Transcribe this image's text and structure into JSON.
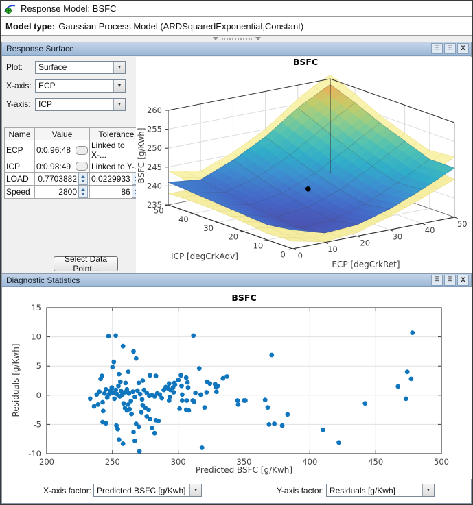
{
  "window": {
    "title": "Response Model: BSFC",
    "model_type_label": "Model type:",
    "model_type_value": "Gaussian Process Model (ARDSquaredExponential,Constant)"
  },
  "colors": {
    "panel_header": "#a9c2de",
    "scatter_point": "#0f75bc",
    "surface_low": "#4f46a0",
    "surface_mid": "#30adc9",
    "surface_high": "#eda64f",
    "confidence_surface": "#f8f2ad"
  },
  "response_surface_panel": {
    "title": "Response Surface",
    "buttons": {
      "dock": "⊟",
      "maximize": "⊞",
      "close": "X"
    },
    "controls": [
      {
        "label": "Plot:",
        "value": "Surface"
      },
      {
        "label": "X-axis:",
        "value": "ECP"
      },
      {
        "label": "Y-axis:",
        "value": "ICP"
      }
    ],
    "table": {
      "headers": [
        "Name",
        "Value",
        "Tolerance"
      ],
      "rows": [
        {
          "name": "ECP",
          "value": "0:0.96:48",
          "tolerance": "Linked to X-..."
        },
        {
          "name": "ICP",
          "value": "0:0.98:49",
          "tolerance": "Linked to Y-..."
        },
        {
          "name": "LOAD",
          "value": "0.7703882",
          "tolerance": "0.0229933"
        },
        {
          "name": "Speed",
          "value": "2800",
          "tolerance": "86"
        }
      ]
    },
    "select_data_point_button": "Select Data Point..."
  },
  "diagnostic_panel": {
    "title": "Diagnostic Statistics",
    "buttons": {
      "dock": "⊟",
      "maximize": "⊞",
      "close": "X"
    },
    "x_factor_label": "X-axis factor:",
    "x_factor_value": "Predicted BSFC [g/Kwh]",
    "y_factor_label": "Y-axis factor:",
    "y_factor_value": "Residuals [g/Kwh]"
  },
  "chart_data": [
    {
      "type": "surface",
      "title": "BSFC",
      "xlabel": "ECP [degCrkRet]",
      "ylabel": "ICP [degCrkAdv]",
      "zlabel": "BSFC [g/Kwh]",
      "xlim": [
        0,
        50
      ],
      "ylim": [
        0,
        50
      ],
      "zlim": [
        235,
        260
      ],
      "xticks": [
        0,
        10,
        20,
        30,
        40,
        50
      ],
      "yticks": [
        0,
        10,
        20,
        30,
        40,
        50
      ],
      "zticks": [
        235,
        240,
        245,
        250,
        255,
        260
      ],
      "ecp_grid": [
        0,
        10,
        20,
        30,
        40,
        50
      ],
      "icp_grid": [
        0,
        10,
        20,
        30,
        40,
        50
      ],
      "bsfc_values": [
        [
          240.0,
          237.5,
          238.0,
          240.5,
          244.0,
          248.0
        ],
        [
          239.0,
          236.5,
          237.0,
          239.5,
          243.5,
          248.0
        ],
        [
          239.5,
          237.0,
          238.0,
          241.0,
          245.5,
          250.5
        ],
        [
          240.0,
          238.0,
          239.5,
          243.0,
          248.0,
          253.0
        ],
        [
          240.5,
          239.0,
          241.5,
          245.5,
          251.0,
          256.0
        ],
        [
          241.0,
          240.0,
          243.5,
          248.0,
          254.0,
          258.5
        ]
      ],
      "confidence_band": "upper and lower boundary surfaces, ~1-3 g/Kwh, widest at edges",
      "marker": {
        "ecp": 24,
        "icp": 25,
        "bsfc": 241
      }
    },
    {
      "type": "scatter",
      "title": "BSFC",
      "xlabel": "Predicted BSFC [g/Kwh]",
      "ylabel": "Residuals [g/Kwh]",
      "xlim": [
        200,
        500
      ],
      "ylim": [
        -10,
        15
      ],
      "xticks": [
        200,
        250,
        300,
        350,
        400,
        450,
        500
      ],
      "yticks": [
        -10,
        -5,
        0,
        5,
        10,
        15
      ],
      "grid": true,
      "marker_color": "#0f75bc",
      "points": [
        [
          247,
          10.1
        ],
        [
          252.5,
          10.2
        ],
        [
          311.5,
          10.2
        ],
        [
          478,
          10.7
        ],
        [
          258,
          8.4
        ],
        [
          266,
          7.5
        ],
        [
          268,
          6.3
        ],
        [
          371,
          6.9
        ],
        [
          251,
          5.7
        ],
        [
          250,
          4.8
        ],
        [
          316,
          4.6
        ],
        [
          474,
          4.0
        ],
        [
          262,
          4.0
        ],
        [
          242,
          3.3
        ],
        [
          241,
          2.8
        ],
        [
          255,
          3.6
        ],
        [
          256,
          2.3
        ],
        [
          260,
          2.1
        ],
        [
          270,
          2.1
        ],
        [
          273,
          2.5
        ],
        [
          278.5,
          3.4
        ],
        [
          283,
          3.3
        ],
        [
          297,
          2.1
        ],
        [
          300,
          2.6
        ],
        [
          302,
          3.4
        ],
        [
          306,
          3.0
        ],
        [
          307,
          2.2
        ],
        [
          322,
          2.3
        ],
        [
          324,
          2.0
        ],
        [
          328,
          1.9
        ],
        [
          334,
          2.9
        ],
        [
          337,
          3.2
        ],
        [
          330,
          1.6
        ],
        [
          328.5,
          1.4
        ],
        [
          293,
          2.0
        ],
        [
          297.5,
          1.8
        ],
        [
          302.5,
          1.6
        ],
        [
          296,
          1.3
        ],
        [
          307.5,
          1.3
        ],
        [
          477,
          2.8
        ],
        [
          467,
          1.5
        ],
        [
          233,
          -0.6
        ],
        [
          238,
          0.1
        ],
        [
          240,
          0.6
        ],
        [
          242.5,
          -1.2
        ],
        [
          244,
          0.3
        ],
        [
          245,
          1.0
        ],
        [
          246,
          -0.4
        ],
        [
          247.5,
          0.2
        ],
        [
          248.5,
          0.8
        ],
        [
          249.5,
          1.3
        ],
        [
          250.5,
          0.4
        ],
        [
          251.5,
          -0.6
        ],
        [
          252.5,
          0.9
        ],
        [
          253.5,
          0.2
        ],
        [
          254.5,
          1.6
        ],
        [
          255.5,
          -0.2
        ],
        [
          256.5,
          0.7
        ],
        [
          257.5,
          0.1
        ],
        [
          258.5,
          -1.4
        ],
        [
          259.5,
          0.5
        ],
        [
          261,
          1.0
        ],
        [
          262.5,
          0.3
        ],
        [
          264,
          -1.0
        ],
        [
          265.5,
          0.6
        ],
        [
          267,
          -0.3
        ],
        [
          269,
          0.8
        ],
        [
          271,
          0.2
        ],
        [
          272.5,
          -0.7
        ],
        [
          274,
          0.9
        ],
        [
          276,
          0.4
        ],
        [
          278,
          -0.1
        ],
        [
          280,
          0.0
        ],
        [
          282,
          -0.2
        ],
        [
          284,
          0.3
        ],
        [
          286,
          0.1
        ],
        [
          287.5,
          -0.5
        ],
        [
          289,
          0.9
        ],
        [
          290.5,
          1.4
        ],
        [
          292,
          1.2
        ],
        [
          294,
          0.9
        ],
        [
          296.5,
          0.5
        ],
        [
          303,
          0.1
        ],
        [
          313,
          0.4
        ],
        [
          317,
          0.1
        ],
        [
          321.5,
          0.5
        ],
        [
          329,
          0.6
        ],
        [
          345,
          -0.9
        ],
        [
          350,
          -0.9
        ],
        [
          293.5,
          -0.3
        ],
        [
          236,
          -1.9
        ],
        [
          239,
          -1.6
        ],
        [
          243,
          -2.7
        ],
        [
          242.5,
          -4.6
        ],
        [
          245,
          -4.8
        ],
        [
          253,
          -5.2
        ],
        [
          254,
          -5.8
        ],
        [
          255,
          -7.6
        ],
        [
          258,
          -8.3
        ],
        [
          259.5,
          -2.2
        ],
        [
          261,
          -2.6
        ],
        [
          262,
          -1.6
        ],
        [
          263,
          -2.4
        ],
        [
          264.5,
          -3.2
        ],
        [
          266,
          -6.3
        ],
        [
          267,
          -7.8
        ],
        [
          270.5,
          -9.6
        ],
        [
          268,
          -4.9
        ],
        [
          270,
          -5.4
        ],
        [
          272,
          -2.9
        ],
        [
          273,
          -1.7
        ],
        [
          275,
          -2.2
        ],
        [
          276,
          -3.6
        ],
        [
          277.5,
          -2.5
        ],
        [
          278.5,
          -4.1
        ],
        [
          280,
          -5.6
        ],
        [
          282,
          -6.5
        ],
        [
          283,
          -4.3
        ],
        [
          285,
          -4.4
        ],
        [
          293,
          -0.9
        ],
        [
          301,
          -2.3
        ],
        [
          303,
          -0.9
        ],
        [
          306,
          -2.5
        ],
        [
          306.5,
          -0.9
        ],
        [
          308,
          -2.6
        ],
        [
          311,
          -0.9
        ],
        [
          312,
          -1.1
        ],
        [
          318,
          -9.0
        ],
        [
          320,
          -2.1
        ],
        [
          345.5,
          -1.6
        ],
        [
          351,
          -0.9
        ],
        [
          366,
          -0.8
        ],
        [
          368,
          -2.1
        ],
        [
          383,
          -3.3
        ],
        [
          369,
          -5.0
        ],
        [
          373,
          -4.9
        ],
        [
          379,
          -5.2
        ],
        [
          410,
          -5.9
        ],
        [
          422,
          -8.1
        ],
        [
          442,
          -1.4
        ],
        [
          473,
          -0.6
        ]
      ]
    }
  ]
}
